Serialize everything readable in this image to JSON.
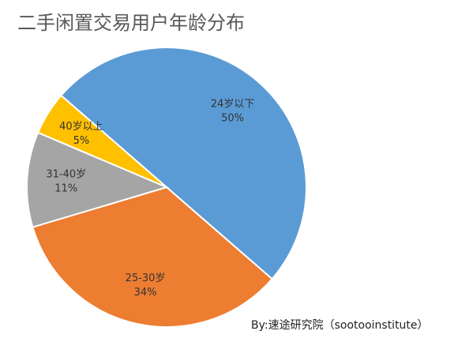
{
  "chart_data": {
    "type": "pie",
    "title": "二手闲置交易用户年龄分布",
    "categories": [
      "24岁以下",
      "25-30岁",
      "31-40岁",
      "40岁以上"
    ],
    "values": [
      50,
      34,
      11,
      5
    ],
    "value_labels": [
      "50%",
      "34%",
      "11%",
      "5%"
    ],
    "colors": [
      "#5b9bd5",
      "#ed7d31",
      "#a5a5a5",
      "#ffc000"
    ],
    "source": "By:速途研究院（sootooinstitute）"
  }
}
